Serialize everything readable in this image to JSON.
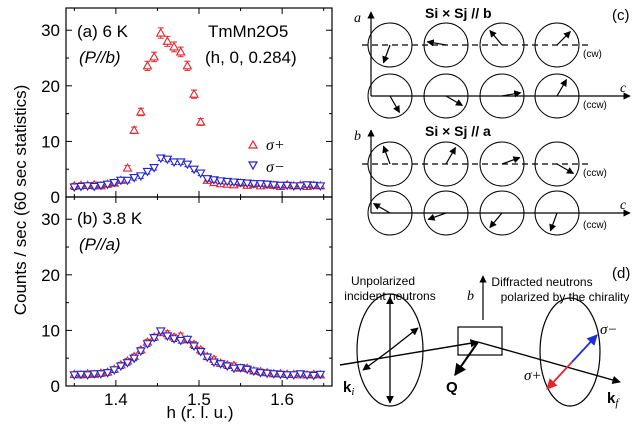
{
  "chart_data": [
    {
      "type": "scatter",
      "panel_label": "(a) 6 K",
      "polarization": "(P//b)",
      "sample": "TmMn2O5",
      "q_vector": "(h, 0, 0.284)",
      "xlim": [
        1.34,
        1.66
      ],
      "ylim": [
        0,
        34
      ],
      "yticks": [
        "0",
        "10",
        "20",
        "30"
      ],
      "series": [
        {
          "name": "σ+",
          "marker": "triangle-up",
          "color": "#e8242b",
          "x": [
            1.35,
            1.358,
            1.366,
            1.374,
            1.382,
            1.39,
            1.398,
            1.406,
            1.414,
            1.422,
            1.43,
            1.438,
            1.446,
            1.454,
            1.462,
            1.47,
            1.478,
            1.486,
            1.494,
            1.502,
            1.51,
            1.518,
            1.526,
            1.534,
            1.542,
            1.55,
            1.558,
            1.566,
            1.574,
            1.582,
            1.59,
            1.598,
            1.606,
            1.614,
            1.622,
            1.63,
            1.638,
            1.646
          ],
          "y": [
            2.0,
            2.1,
            2.1,
            2.2,
            2.0,
            2.3,
            2.5,
            3.0,
            5.2,
            12.0,
            15.3,
            23.6,
            25.2,
            29.5,
            28.0,
            27.0,
            26.1,
            23.6,
            18.5,
            13.5,
            3.0,
            2.6,
            2.4,
            2.3,
            2.2,
            2.5,
            2.1,
            2.3,
            2.0,
            2.2,
            2.1,
            1.9,
            2.2,
            2.0,
            2.1,
            1.9,
            2.1,
            2.0
          ]
        },
        {
          "name": "σ−",
          "marker": "triangle-down",
          "color": "#2222cc",
          "x": [
            1.35,
            1.358,
            1.366,
            1.374,
            1.382,
            1.39,
            1.398,
            1.406,
            1.414,
            1.422,
            1.43,
            1.438,
            1.446,
            1.454,
            1.462,
            1.47,
            1.478,
            1.486,
            1.494,
            1.502,
            1.51,
            1.518,
            1.526,
            1.534,
            1.542,
            1.55,
            1.558,
            1.566,
            1.574,
            1.582,
            1.59,
            1.598,
            1.606,
            1.614,
            1.622,
            1.63,
            1.638,
            1.646
          ],
          "y": [
            1.8,
            1.9,
            2.0,
            1.9,
            2.1,
            2.3,
            2.6,
            3.0,
            3.0,
            3.5,
            3.8,
            4.6,
            5.3,
            7.0,
            6.8,
            6.3,
            6.3,
            5.9,
            5.0,
            4.3,
            3.3,
            3.1,
            2.9,
            2.8,
            2.7,
            2.6,
            2.5,
            2.4,
            2.4,
            2.3,
            2.2,
            2.1,
            2.1,
            2.0,
            2.0,
            2.2,
            2.1,
            2.0
          ]
        }
      ]
    },
    {
      "type": "scatter",
      "panel_label": "(b) 3.8 K",
      "polarization": "(P//a)",
      "xlabel": "h (r. l. u.)",
      "xlim": [
        1.34,
        1.66
      ],
      "ylim": [
        0,
        34
      ],
      "xticks": [
        "1.4",
        "1.5",
        "1.6"
      ],
      "yticks": [
        "0",
        "10",
        "20",
        "30"
      ],
      "series": [
        {
          "marker": "triangle-up",
          "color": "#e8242b",
          "x": [
            1.35,
            1.358,
            1.366,
            1.374,
            1.382,
            1.39,
            1.398,
            1.406,
            1.414,
            1.422,
            1.43,
            1.438,
            1.446,
            1.454,
            1.462,
            1.47,
            1.478,
            1.486,
            1.494,
            1.502,
            1.51,
            1.518,
            1.526,
            1.534,
            1.542,
            1.55,
            1.558,
            1.566,
            1.574,
            1.582,
            1.59,
            1.598,
            1.606,
            1.614,
            1.622,
            1.63,
            1.638,
            1.646
          ],
          "y": [
            2.1,
            2.0,
            2.2,
            2.1,
            2.3,
            2.5,
            3.0,
            3.8,
            4.5,
            5.3,
            6.5,
            7.9,
            8.8,
            9.6,
            9.4,
            8.8,
            9.0,
            8.3,
            7.5,
            6.5,
            5.3,
            4.8,
            4.1,
            3.8,
            3.7,
            3.2,
            3.2,
            2.7,
            2.6,
            2.4,
            2.2,
            2.2,
            2.1,
            2.1,
            2.0,
            2.0,
            2.1,
            2.0
          ]
        },
        {
          "marker": "triangle-down",
          "color": "#2222cc",
          "x": [
            1.35,
            1.358,
            1.366,
            1.374,
            1.382,
            1.39,
            1.398,
            1.406,
            1.414,
            1.422,
            1.43,
            1.438,
            1.446,
            1.454,
            1.462,
            1.47,
            1.478,
            1.486,
            1.494,
            1.502,
            1.51,
            1.518,
            1.526,
            1.534,
            1.542,
            1.55,
            1.558,
            1.566,
            1.574,
            1.582,
            1.59,
            1.598,
            1.606,
            1.614,
            1.622,
            1.63,
            1.638,
            1.646
          ],
          "y": [
            2.0,
            2.1,
            2.0,
            2.2,
            2.2,
            2.4,
            2.9,
            3.6,
            4.2,
            5.0,
            6.3,
            7.6,
            8.7,
            9.9,
            9.0,
            8.5,
            8.2,
            8.4,
            7.2,
            6.2,
            5.2,
            4.3,
            4.0,
            3.6,
            3.2,
            3.3,
            3.0,
            2.7,
            2.4,
            2.3,
            2.2,
            2.1,
            2.0,
            2.0,
            2.2,
            2.0,
            1.9,
            2.1
          ]
        }
      ]
    }
  ],
  "shared_ylabel": "Counts / sec (60 sec statistics)",
  "legend": {
    "sigma_plus": "σ+",
    "sigma_minus": "σ−"
  },
  "diagram_c": {
    "label": "(c)",
    "top_title": "Si × Sj // b",
    "bottom_title": "Si × Sj // a",
    "top_axis_v": "a",
    "top_axis_h": "c",
    "bottom_axis_v": "b",
    "bottom_axis_h": "c",
    "top_row1_tag": "(cw)",
    "top_row2_tag": "(ccw)",
    "bottom_row1_tag": "(ccw)",
    "bottom_row2_tag": "(ccw)"
  },
  "diagram_d": {
    "label": "(d)",
    "incident": [
      "Unpolarized",
      "incident neutrons"
    ],
    "diffracted": [
      "Diffracted neutrons",
      "polarized by the chirality"
    ],
    "b_axis": "b",
    "ki": "k",
    "ki_sub": "i",
    "kf": "k",
    "kf_sub": "f",
    "Q": "Q",
    "sigma_minus": "σ−",
    "sigma_plus": "σ+",
    "arrow_minus_color": "#1f2fd6",
    "arrow_plus_color": "#e8242b"
  }
}
